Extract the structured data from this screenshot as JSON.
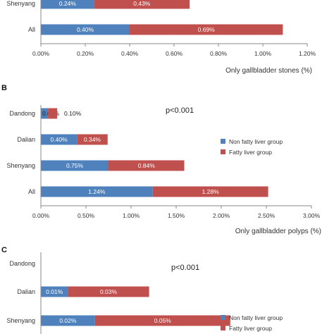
{
  "colors": {
    "non_fatty": "#4f81bd",
    "fatty": "#c0504d",
    "axis": "#888888"
  },
  "chart_data": [
    {
      "panel": "",
      "type": "bar",
      "orientation": "horizontal",
      "stacked": true,
      "categories": [
        "Shenyang",
        "All"
      ],
      "series": [
        {
          "name": "",
          "values": [
            0.24,
            0.4
          ],
          "labels": [
            "0.24%",
            "0.40%"
          ]
        },
        {
          "name": "",
          "values": [
            0.43,
            0.69
          ],
          "labels": [
            "0.43%",
            "0.69%"
          ]
        }
      ],
      "xlabel": "Only gallbladder stones (%)",
      "xlim": [
        0,
        1.2
      ],
      "xticks": [
        "0.00%",
        "0.20%",
        "0.40%",
        "0.60%",
        "0.80%",
        "1.00%",
        "1.20%"
      ],
      "legend": []
    },
    {
      "panel": "B",
      "type": "bar",
      "orientation": "horizontal",
      "stacked": true,
      "categories": [
        "Dandong",
        "Dalian",
        "Shenyang",
        "All"
      ],
      "series": [
        {
          "name": "Non fatty liver group",
          "values": [
            0.08,
            0.4,
            0.75,
            1.24
          ],
          "labels": [
            "0.08%",
            "0.40%",
            "0.75%",
            "1.24%"
          ]
        },
        {
          "name": "Fatty liver group",
          "values": [
            0.1,
            0.34,
            0.84,
            1.28
          ],
          "labels": [
            "0.10%",
            "0.34%",
            "0.84%",
            "1.28%"
          ]
        }
      ],
      "annotation": "p<0.001",
      "xlabel": "Only gallbladder polyps (%)",
      "xlim": [
        0,
        3
      ],
      "xticks": [
        "0.00%",
        "0.50%",
        "1.00%",
        "1.50%",
        "2.00%",
        "2.50%",
        "3.00%"
      ],
      "legend": [
        "Non fatty liver group",
        "Fatty liver group"
      ]
    },
    {
      "panel": "C",
      "type": "bar",
      "orientation": "horizontal",
      "stacked": true,
      "categories": [
        "Dandong",
        "Dalian",
        "Shenyang"
      ],
      "series": [
        {
          "name": "Non fatty liver group",
          "values": [
            0,
            0.01,
            0.02
          ],
          "labels": [
            "",
            "0.01%",
            "0.02%"
          ]
        },
        {
          "name": "Fatty liver group",
          "values": [
            0,
            0.03,
            0.05
          ],
          "labels": [
            "",
            "0.03%",
            "0.05%"
          ]
        }
      ],
      "annotation": "p<0.001",
      "xlim": [
        0,
        0.1
      ],
      "legend": [
        "Non fatty liver group",
        "Fatty liver group"
      ]
    }
  ]
}
